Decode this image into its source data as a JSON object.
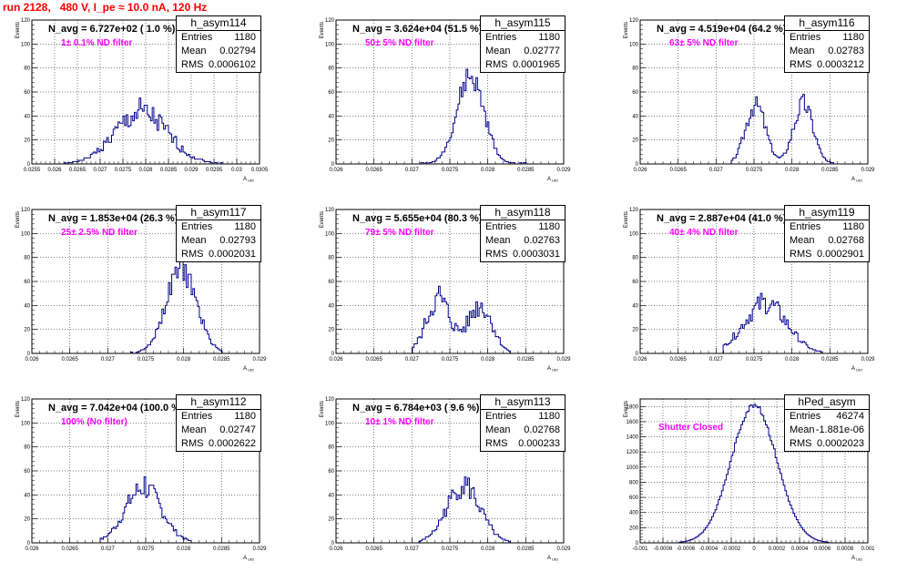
{
  "page": {
    "title": "run 2128,   480 V, I_pe ≈ 10.0 nA, 120 Hz"
  },
  "labels": {
    "ylabel": "Events",
    "xlabel": "A",
    "xlabel_sub": "UID",
    "entries_label": "Entries",
    "mean_label": "Mean",
    "rms_label": "RMS"
  },
  "colors": {
    "histogram_line": "#00008b",
    "filter_text": "#ff00ff",
    "title_text": "#ff0000"
  },
  "chart_data": [
    {
      "type": "histogram",
      "name": "h_asym114",
      "navg": "N_avg = 6.727e+02 ( 1.0 %)",
      "filter": "1± 0.1% ND filter",
      "stats": {
        "entries": "1180",
        "mean": "0.02794",
        "rms": "0.0006102"
      },
      "xlim": [
        0.0255,
        0.0305
      ],
      "ylim": [
        0,
        120
      ],
      "xticks": [
        "0.0255",
        "0.026",
        "0.0265",
        "0.027",
        "0.0275",
        "0.028",
        "0.0285",
        "0.029",
        "0.0295",
        "0.03",
        "0.0305"
      ],
      "yticks": [
        "0",
        "20",
        "40",
        "60",
        "80",
        "100",
        "120"
      ],
      "peaks": [
        {
          "mean": 0.0279,
          "sigma": 0.00058,
          "height": 42
        }
      ],
      "peak_value": 55,
      "x_range": [
        0.0262,
        0.0297
      ],
      "noise": 0.28,
      "seed": 1
    },
    {
      "type": "histogram",
      "name": "h_asym115",
      "navg": "N_avg = 3.624e+04 (51.5 %)",
      "filter": "50± 5% ND filter",
      "stats": {
        "entries": "1180",
        "mean": "0.02777",
        "rms": "0.0001965"
      },
      "xlim": [
        0.026,
        0.029
      ],
      "ylim": [
        0,
        120
      ],
      "xticks": [
        "0.026",
        "0.0265",
        "0.027",
        "0.0275",
        "0.028",
        "0.0285",
        "0.029"
      ],
      "yticks": [
        "0",
        "20",
        "40",
        "60",
        "80",
        "100",
        "120"
      ],
      "peaks": [
        {
          "mean": 0.02777,
          "sigma": 0.00018,
          "height": 72
        }
      ],
      "peak_value": 79,
      "x_range": [
        0.0271,
        0.0285
      ],
      "noise": 0.15,
      "seed": 2
    },
    {
      "type": "histogram",
      "name": "h_asym116",
      "navg": "N_avg = 4.519e+04 (64.2 %)",
      "filter": "63± 5% ND filter",
      "stats": {
        "entries": "1180",
        "mean": "0.02783",
        "rms": "0.0003212"
      },
      "xlim": [
        0.026,
        0.029
      ],
      "ylim": [
        0,
        120
      ],
      "xticks": [
        "0.026",
        "0.0265",
        "0.027",
        "0.0275",
        "0.028",
        "0.0285",
        "0.029"
      ],
      "yticks": [
        "0",
        "20",
        "40",
        "60",
        "80",
        "100",
        "120"
      ],
      "peaks": [
        {
          "mean": 0.02752,
          "sigma": 0.00013,
          "height": 50
        },
        {
          "mean": 0.02815,
          "sigma": 0.00013,
          "height": 50
        }
      ],
      "peak_value": 56,
      "x_range": [
        0.0272,
        0.0286
      ],
      "noise": 0.18,
      "seed": 3
    },
    {
      "type": "histogram",
      "name": "h_asym117",
      "navg": "N_avg = 1.853e+04 (26.3 %)",
      "filter": "25± 2.5% ND filter",
      "stats": {
        "entries": "1180",
        "mean": "0.02793",
        "rms": "0.0002031"
      },
      "xlim": [
        0.026,
        0.029
      ],
      "ylim": [
        0,
        120
      ],
      "xticks": [
        "0.026",
        "0.0265",
        "0.027",
        "0.0275",
        "0.028",
        "0.0285",
        "0.029"
      ],
      "yticks": [
        "0",
        "20",
        "40",
        "60",
        "80",
        "100",
        "120"
      ],
      "peaks": [
        {
          "mean": 0.02797,
          "sigma": 0.0002,
          "height": 70
        }
      ],
      "peak_value": 77,
      "x_range": [
        0.0273,
        0.0285
      ],
      "noise": 0.15,
      "seed": 4
    },
    {
      "type": "histogram",
      "name": "h_asym118",
      "navg": "N_avg = 5.655e+04 (80.3 %)",
      "filter": "79± 5% ND filter",
      "stats": {
        "entries": "1180",
        "mean": "0.02763",
        "rms": "0.0003031"
      },
      "xlim": [
        0.026,
        0.029
      ],
      "ylim": [
        0,
        120
      ],
      "xticks": [
        "0.026",
        "0.0265",
        "0.027",
        "0.0275",
        "0.028",
        "0.0285",
        "0.029"
      ],
      "yticks": [
        "0",
        "20",
        "40",
        "60",
        "80",
        "100",
        "120"
      ],
      "peaks": [
        {
          "mean": 0.02735,
          "sigma": 0.00016,
          "height": 45
        },
        {
          "mean": 0.0279,
          "sigma": 0.00016,
          "height": 40
        }
      ],
      "peak_value": 56,
      "x_range": [
        0.027,
        0.0283
      ],
      "noise": 0.25,
      "seed": 5
    },
    {
      "type": "histogram",
      "name": "h_asym119",
      "navg": "N_avg = 2.887e+04 (41.0 %)",
      "filter": "40± 4% ND filter",
      "stats": {
        "entries": "1180",
        "mean": "0.02768",
        "rms": "0.0002901"
      },
      "xlim": [
        0.026,
        0.029
      ],
      "ylim": [
        0,
        120
      ],
      "xticks": [
        "0.026",
        "0.0265",
        "0.027",
        "0.0275",
        "0.028",
        "0.0285",
        "0.029"
      ],
      "yticks": [
        "0",
        "20",
        "40",
        "60",
        "80",
        "100",
        "120"
      ],
      "peaks": [
        {
          "mean": 0.02765,
          "sigma": 0.00028,
          "height": 42
        }
      ],
      "peak_value": 50,
      "x_range": [
        0.0271,
        0.0284
      ],
      "noise": 0.22,
      "seed": 6
    },
    {
      "type": "histogram",
      "name": "h_asym112",
      "navg": "N_avg = 7.042e+04 (100.0 %)",
      "filter": "100% (No filter)",
      "stats": {
        "entries": "1180",
        "mean": "0.02747",
        "rms": "0.0002622"
      },
      "xlim": [
        0.026,
        0.029
      ],
      "ylim": [
        0,
        120
      ],
      "xticks": [
        "0.026",
        "0.0265",
        "0.027",
        "0.0275",
        "0.028",
        "0.0285",
        "0.029"
      ],
      "yticks": [
        "0",
        "20",
        "40",
        "60",
        "80",
        "100",
        "120"
      ],
      "peaks": [
        {
          "mean": 0.02747,
          "sigma": 0.00024,
          "height": 46
        }
      ],
      "peak_value": 55,
      "x_range": [
        0.0269,
        0.0281
      ],
      "noise": 0.22,
      "seed": 7
    },
    {
      "type": "histogram",
      "name": "h_asym113",
      "navg": "N_avg = 6.784e+03 ( 9.6 %)",
      "filter": "10± 1% ND filter",
      "stats": {
        "entries": "1180",
        "mean": "0.02768",
        "rms": "0.000233"
      },
      "xlim": [
        0.026,
        0.029
      ],
      "ylim": [
        0,
        120
      ],
      "xticks": [
        "0.026",
        "0.0265",
        "0.027",
        "0.0275",
        "0.028",
        "0.0285",
        "0.029"
      ],
      "yticks": [
        "0",
        "20",
        "40",
        "60",
        "80",
        "100",
        "120"
      ],
      "peaks": [
        {
          "mean": 0.02768,
          "sigma": 0.00022,
          "height": 48
        }
      ],
      "peak_value": 55,
      "x_range": [
        0.0271,
        0.0283
      ],
      "noise": 0.22,
      "seed": 8
    },
    {
      "type": "histogram",
      "name": "hPed_asym",
      "navg": "",
      "filter": "Shutter Closed",
      "stats": {
        "entries": "46274",
        "mean": "-1.881e-06",
        "rms": "0.0002023"
      },
      "xlim": [
        -0.001,
        0.001
      ],
      "ylim": [
        0,
        1900
      ],
      "xticks": [
        "-0.001",
        "-0.0008",
        "-0.0006",
        "-0.0004",
        "-0.0002",
        "0",
        "0.0002",
        "0.0004",
        "0.0006",
        "0.0008",
        "0.001"
      ],
      "yticks": [
        "0",
        "200",
        "400",
        "600",
        "800",
        "1000",
        "1200",
        "1400",
        "1600",
        "1800"
      ],
      "peaks": [
        {
          "mean": 0.0,
          "sigma": 0.0002,
          "height": 1820
        }
      ],
      "peak_value": 1830,
      "x_range": [
        -0.00065,
        0.00065
      ],
      "noise": 0.02,
      "seed": 9
    }
  ]
}
